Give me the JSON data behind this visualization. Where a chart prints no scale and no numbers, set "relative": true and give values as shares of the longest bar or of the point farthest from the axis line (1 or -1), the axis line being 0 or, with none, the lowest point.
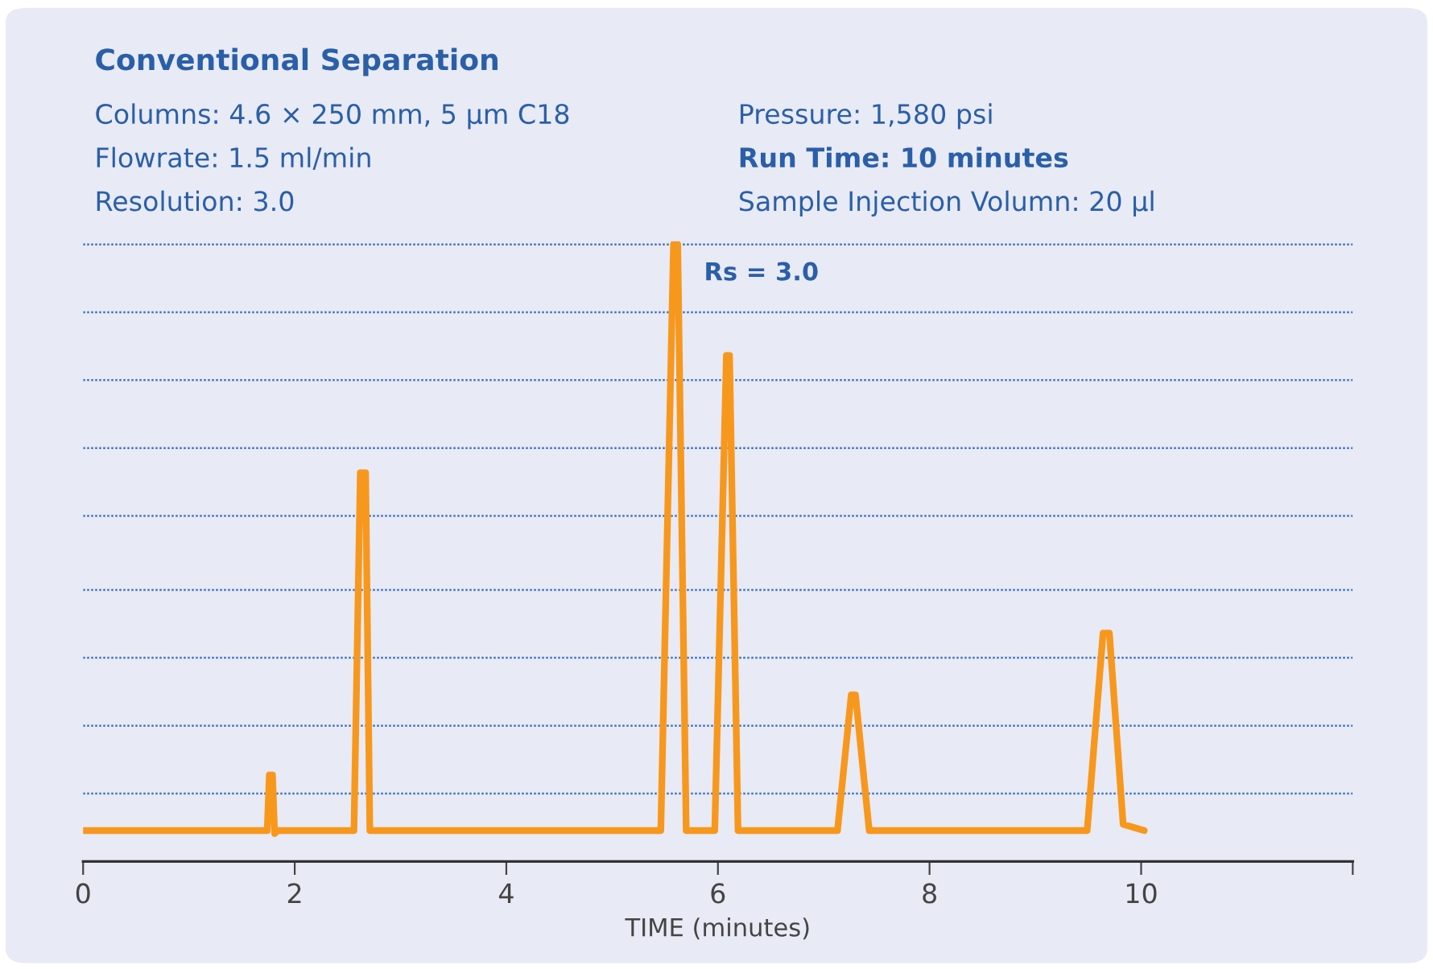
{
  "chart_data": {
    "type": "line",
    "title": "Conventional Separation",
    "relative": true,
    "annotations": [
      "Columns: 4.6 × 250 mm, 5 µm C18",
      "Flowrate: 1.5 ml/min",
      "Resolution: 3.0",
      "Pressure: 1,580 psi",
      "Run Time: 10 minutes",
      "Sample Injection Volumn: 20 µl",
      "Rs = 3.0"
    ],
    "ref_lines": [
      {
        "axis": "y",
        "value": 0.11,
        "color": "#3d75c0",
        "line_style": "dotted"
      },
      {
        "axis": "y",
        "value": 0.22,
        "color": "#3d75c0",
        "line_style": "dotted"
      },
      {
        "axis": "y",
        "value": 0.33,
        "color": "#3d75c0",
        "line_style": "dotted"
      },
      {
        "axis": "y",
        "value": 0.44,
        "color": "#3d75c0",
        "line_style": "dotted"
      },
      {
        "axis": "y",
        "value": 0.56,
        "color": "#3d75c0",
        "line_style": "dotted"
      },
      {
        "axis": "y",
        "value": 0.67,
        "color": "#3d75c0",
        "line_style": "dotted"
      },
      {
        "axis": "y",
        "value": 0.78,
        "color": "#3d75c0",
        "line_style": "dotted"
      },
      {
        "axis": "y",
        "value": 0.89,
        "color": "#3d75c0",
        "line_style": "dotted"
      },
      {
        "axis": "y",
        "value": 1.0,
        "color": "#3d75c0",
        "line_style": "dotted"
      }
    ],
    "xlabel": "TIME (minutes)",
    "xlim": [
      0,
      12
    ],
    "xticks": [
      0,
      2,
      4,
      6,
      8,
      10,
      {
        "value": 12,
        "label": null
      }
    ],
    "tick_labels": "x",
    "marker": "none",
    "line_style": "solid",
    "series": [
      {
        "color": "#f7981d",
        "x": [
          0,
          1.74,
          1.76,
          1.79,
          1.81,
          1.84,
          2.56,
          2.62,
          2.67,
          2.71,
          5.46,
          5.58,
          5.62,
          5.7,
          5.97,
          6.08,
          6.11,
          6.19,
          7.13,
          7.26,
          7.3,
          7.43,
          9.49,
          9.64,
          9.7,
          9.83,
          10.03
        ],
        "values": [
          0.05,
          0.05,
          0.14,
          0.14,
          0.045,
          0.05,
          0.05,
          0.63,
          0.63,
          0.05,
          0.05,
          1.0,
          1.0,
          0.05,
          0.05,
          0.82,
          0.82,
          0.05,
          0.05,
          0.27,
          0.27,
          0.05,
          0.05,
          0.37,
          0.37,
          0.06,
          0.05
        ]
      }
    ]
  }
}
